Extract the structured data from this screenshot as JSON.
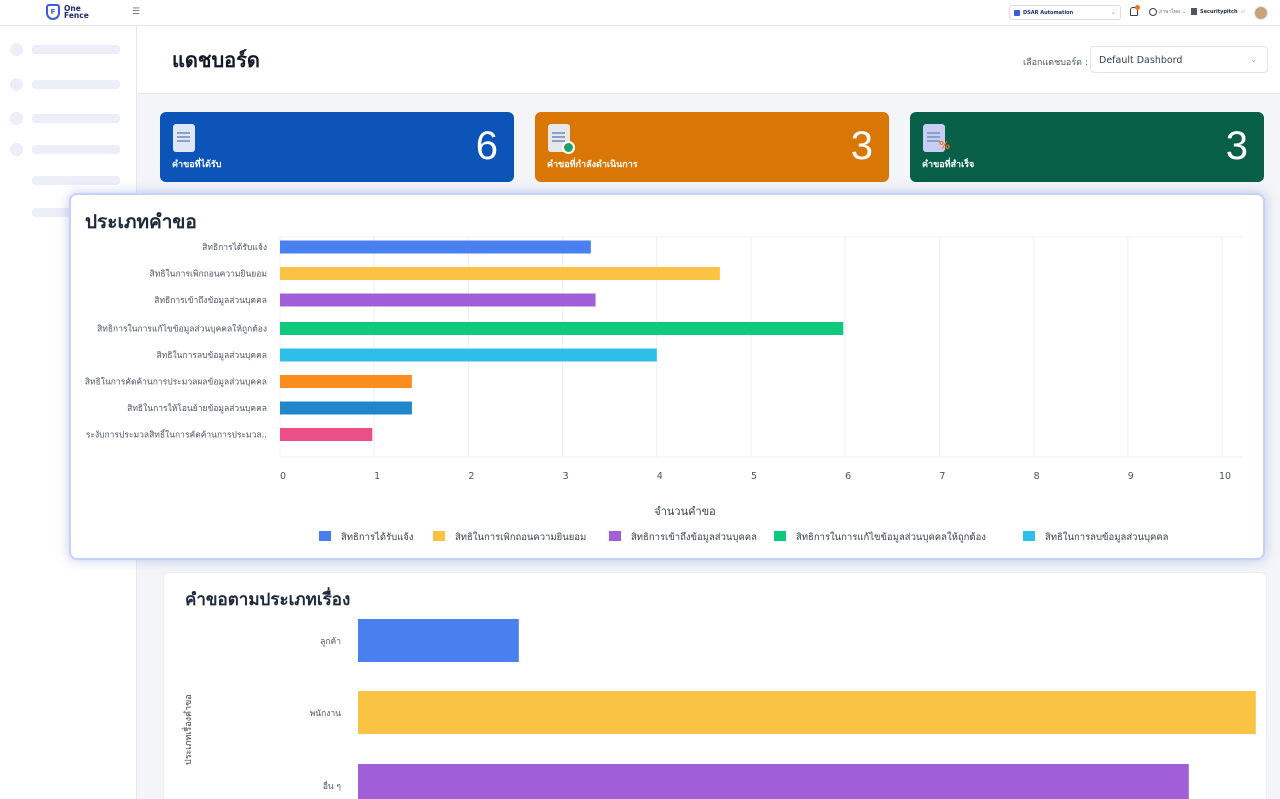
{
  "topbar": {
    "logo_line1": "One",
    "logo_line2": "Fence",
    "org_select": "DSAR Automation",
    "language": "ภาษาไทย",
    "user_name": "Securitypitch"
  },
  "header": {
    "page_title": "แดชบอร์ด",
    "dashboard_label": "เลือกแดชบอร์ด :",
    "dashboard_value": "Default Dashbord"
  },
  "cards": [
    {
      "label": "คำขอที่ได้รับ",
      "value": "6",
      "color": "#0d54b8"
    },
    {
      "label": "คำขอที่กำลังดำเนินการ",
      "value": "3",
      "color": "#d97706"
    },
    {
      "label": "คำขอที่สำเร็จ",
      "value": "3",
      "color": "#065f46"
    }
  ],
  "chart_data": [
    {
      "type": "bar",
      "orientation": "horizontal",
      "title": "ประเภทคำขอ",
      "xlabel": "จำนวนคำขอ",
      "ylabel": "",
      "xlim": [
        0,
        10
      ],
      "xticks": [
        0,
        1,
        2,
        3,
        4,
        5,
        6,
        7,
        8,
        9,
        10
      ],
      "categories": [
        "สิทธิการได้รับแจ้ง",
        "สิทธิในการเพิกถอนความยินยอม",
        "สิทธิการเข้าถึงข้อมูลส่วนบุคคล",
        "สิทธิการในการแก้ไขข้อมูลส่วนบุคคลให้ถูกต้อง",
        "สิทธิในการลบข้อมูลส่วนบุคคล",
        "สิทธิในการคัดค้านการประมวลผลข้อมูลส่วนบุคคล",
        "สิทธิในการให้โอนย้ายข้อมูลส่วนบุคคล",
        "ระงับการประมวลสิทธิ์ในการคัดค้านการประมวล.."
      ],
      "values": [
        3.3,
        4.67,
        3.35,
        5.98,
        4.0,
        1.4,
        1.4,
        0.98
      ],
      "colors": [
        "#4a7ff0",
        "#fbc344",
        "#a05fd6",
        "#10c97c",
        "#2ebfe9",
        "#fb8c1e",
        "#1f86c9",
        "#ec4f87"
      ],
      "legend_entries": [
        "สิทธิการได้รับแจ้ง",
        "สิทธิในการเพิกถอนความยินยอม",
        "สิทธิการเข้าถึงข้อมูลส่วนบุคคล",
        "สิทธิการในการแก้ไขข้อมูลส่วนบุคคลให้ถูกต้อง",
        "สิทธิในการลบข้อมูลส่วนบุคคล"
      ],
      "legend_position": "bottom",
      "grid": true
    },
    {
      "type": "bar",
      "orientation": "horizontal",
      "title": "คำขอตามประเภทเรื่อง",
      "ylabel": "ประเภทเรื่องคำขอ",
      "categories": [
        "ลูกค้า",
        "พนักงาน",
        "อื่น ๆ"
      ],
      "values": [
        1.2,
        6.7,
        6.2
      ],
      "xlim": [
        0,
        7
      ],
      "colors": [
        "#4a7ff0",
        "#fbc344",
        "#a05fd6"
      ]
    }
  ]
}
